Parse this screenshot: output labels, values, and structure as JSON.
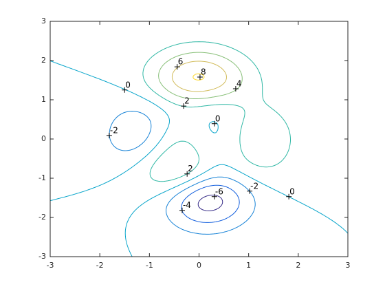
{
  "chart_data": {
    "type": "contour",
    "levels": [
      -6,
      -4,
      -2,
      0,
      2,
      4,
      6,
      8
    ],
    "colors": [
      "#352a87",
      "#0f5cdd",
      "#1481d6",
      "#06a4ca",
      "#2eb7a4",
      "#87bf77",
      "#d1bb59",
      "#fed723"
    ],
    "xlim": [
      -3,
      3
    ],
    "ylim": [
      -3,
      3
    ],
    "xticks": [
      -3,
      -2,
      -1,
      0,
      1,
      2,
      3
    ],
    "yticks": [
      -3,
      -2,
      -1,
      0,
      1,
      2,
      3
    ],
    "labels": [
      {
        "x": -1.5,
        "y": 1.25,
        "level": 0
      },
      {
        "x": -0.44,
        "y": 1.84,
        "level": 6
      },
      {
        "x": 0.02,
        "y": 1.58,
        "level": 8
      },
      {
        "x": 0.74,
        "y": 1.28,
        "level": 4
      },
      {
        "x": -0.31,
        "y": 0.84,
        "level": 2
      },
      {
        "x": 0.31,
        "y": 0.39,
        "level": 0
      },
      {
        "x": -1.81,
        "y": 0.09,
        "level": -2
      },
      {
        "x": -0.24,
        "y": -0.89,
        "level": 2
      },
      {
        "x": 0.31,
        "y": -1.47,
        "level": -6
      },
      {
        "x": 1.02,
        "y": -1.33,
        "level": -2
      },
      {
        "x": 1.81,
        "y": -1.47,
        "level": 0
      },
      {
        "x": -0.34,
        "y": -1.82,
        "level": -4
      }
    ]
  }
}
